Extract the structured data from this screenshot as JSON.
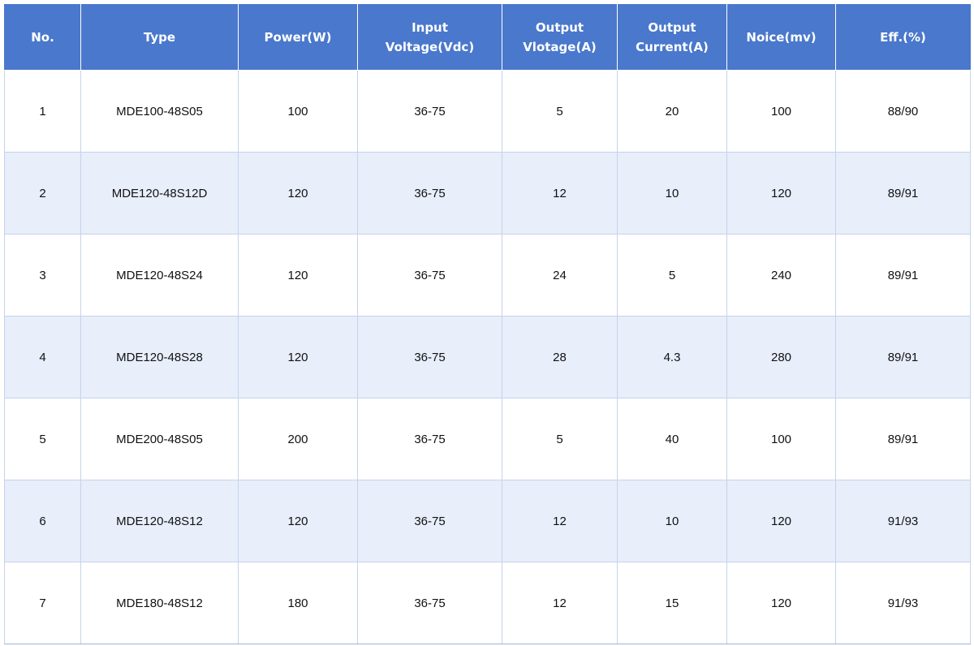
{
  "table": {
    "columns": [
      "No.",
      "Type",
      "Power(W)",
      "Input\nVoltage(Vdc)",
      "Output\nVlotage(A)",
      "Output\nCurrent(A)",
      "Noice(mv)",
      "Eff.(%)"
    ],
    "rows": [
      [
        "1",
        "MDE100-48S05",
        "100",
        "36-75",
        "5",
        "20",
        "100",
        "88/90"
      ],
      [
        "2",
        "MDE120-48S12D",
        "120",
        "36-75",
        "12",
        "10",
        "120",
        "89/91"
      ],
      [
        "3",
        "MDE120-48S24",
        "120",
        "36-75",
        "24",
        "5",
        "240",
        "89/91"
      ],
      [
        "4",
        "MDE120-48S28",
        "120",
        "36-75",
        "28",
        "4.3",
        "280",
        "89/91"
      ],
      [
        "5",
        "MDE200-48S05",
        "200",
        "36-75",
        "5",
        "40",
        "100",
        "89/91"
      ],
      [
        "6",
        "MDE120-48S12",
        "120",
        "36-75",
        "12",
        "10",
        "120",
        "91/93"
      ],
      [
        "7",
        "MDE180-48S12",
        "180",
        "36-75",
        "12",
        "15",
        "120",
        "91/93"
      ]
    ]
  },
  "colors": {
    "header_bg": "#4a78cc",
    "header_text": "#ffffff",
    "row_alt_bg": "#e8eefa",
    "grid_line": "#c5d3ea"
  }
}
